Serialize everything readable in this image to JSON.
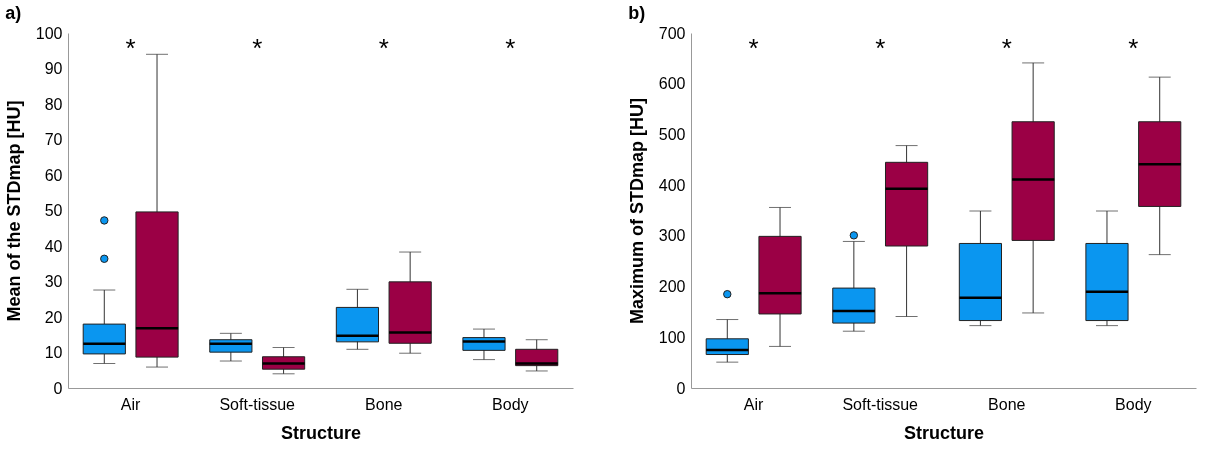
{
  "chart_data": [
    {
      "type": "box",
      "title": "a)",
      "xlabel": "Structure",
      "ylabel": "Mean of the STDmap [HU]",
      "categories": [
        "Air",
        "Soft-tissue",
        "Bone",
        "Body"
      ],
      "ylim": [
        0,
        100
      ],
      "yticks": [
        0,
        10,
        20,
        30,
        40,
        50,
        60,
        70,
        80,
        90,
        100
      ],
      "series": [
        {
          "color": "#0a96f0",
          "boxes": [
            {
              "low": 6.9,
              "q1": 9.6,
              "median": 12.5,
              "q3": 18,
              "high": 27.6,
              "outliers": [
                36.4,
                47.2
              ]
            },
            {
              "low": 7.6,
              "q1": 10.1,
              "median": 12.5,
              "q3": 13.6,
              "high": 15.4
            },
            {
              "low": 10.9,
              "q1": 13,
              "median": 14.7,
              "q3": 22.7,
              "high": 27.8
            },
            {
              "low": 8,
              "q1": 10.6,
              "median": 13.1,
              "q3": 14.2,
              "high": 16.6
            }
          ]
        },
        {
          "color": "#9b0045",
          "boxes": [
            {
              "low": 5.9,
              "q1": 8.7,
              "median": 16.8,
              "q3": 49.6,
              "high": 94
            },
            {
              "low": 4,
              "q1": 5.3,
              "median": 6.9,
              "q3": 8.8,
              "high": 11.4
            },
            {
              "low": 9.8,
              "q1": 12.6,
              "median": 15.6,
              "q3": 29.9,
              "high": 38.3
            },
            {
              "low": 4.8,
              "q1": 6.3,
              "median": 6.9,
              "q3": 10.9,
              "high": 13.6
            }
          ]
        }
      ],
      "annotations": [
        "*",
        "*",
        "*",
        "*"
      ]
    },
    {
      "type": "box",
      "title": "b)",
      "xlabel": "Structure",
      "ylabel": "Maximum of STDmap [HU]",
      "categories": [
        "Air",
        "Soft-tissue",
        "Bone",
        "Body"
      ],
      "ylim": [
        0,
        700
      ],
      "yticks": [
        0,
        100,
        200,
        300,
        400,
        500,
        600,
        700
      ],
      "series": [
        {
          "color": "#0a96f0",
          "boxes": [
            {
              "low": 51,
              "q1": 66,
              "median": 75,
              "q3": 97,
              "high": 135,
              "outliers": [
                185
              ]
            },
            {
              "low": 112,
              "q1": 128,
              "median": 152,
              "q3": 197,
              "high": 289,
              "outliers": [
                301
              ]
            },
            {
              "low": 123,
              "q1": 133,
              "median": 178,
              "q3": 285,
              "high": 349
            },
            {
              "low": 123,
              "q1": 133,
              "median": 190,
              "q3": 285,
              "high": 349
            }
          ]
        },
        {
          "color": "#9b0045",
          "boxes": [
            {
              "low": 82,
              "q1": 146,
              "median": 187,
              "q3": 299,
              "high": 356
            },
            {
              "low": 141,
              "q1": 280,
              "median": 393,
              "q3": 445,
              "high": 478
            },
            {
              "low": 148,
              "q1": 291,
              "median": 411,
              "q3": 525,
              "high": 641
            },
            {
              "low": 263,
              "q1": 358,
              "median": 441,
              "q3": 525,
              "high": 613
            }
          ]
        }
      ],
      "annotations": [
        "*",
        "*",
        "*",
        "*"
      ]
    }
  ]
}
